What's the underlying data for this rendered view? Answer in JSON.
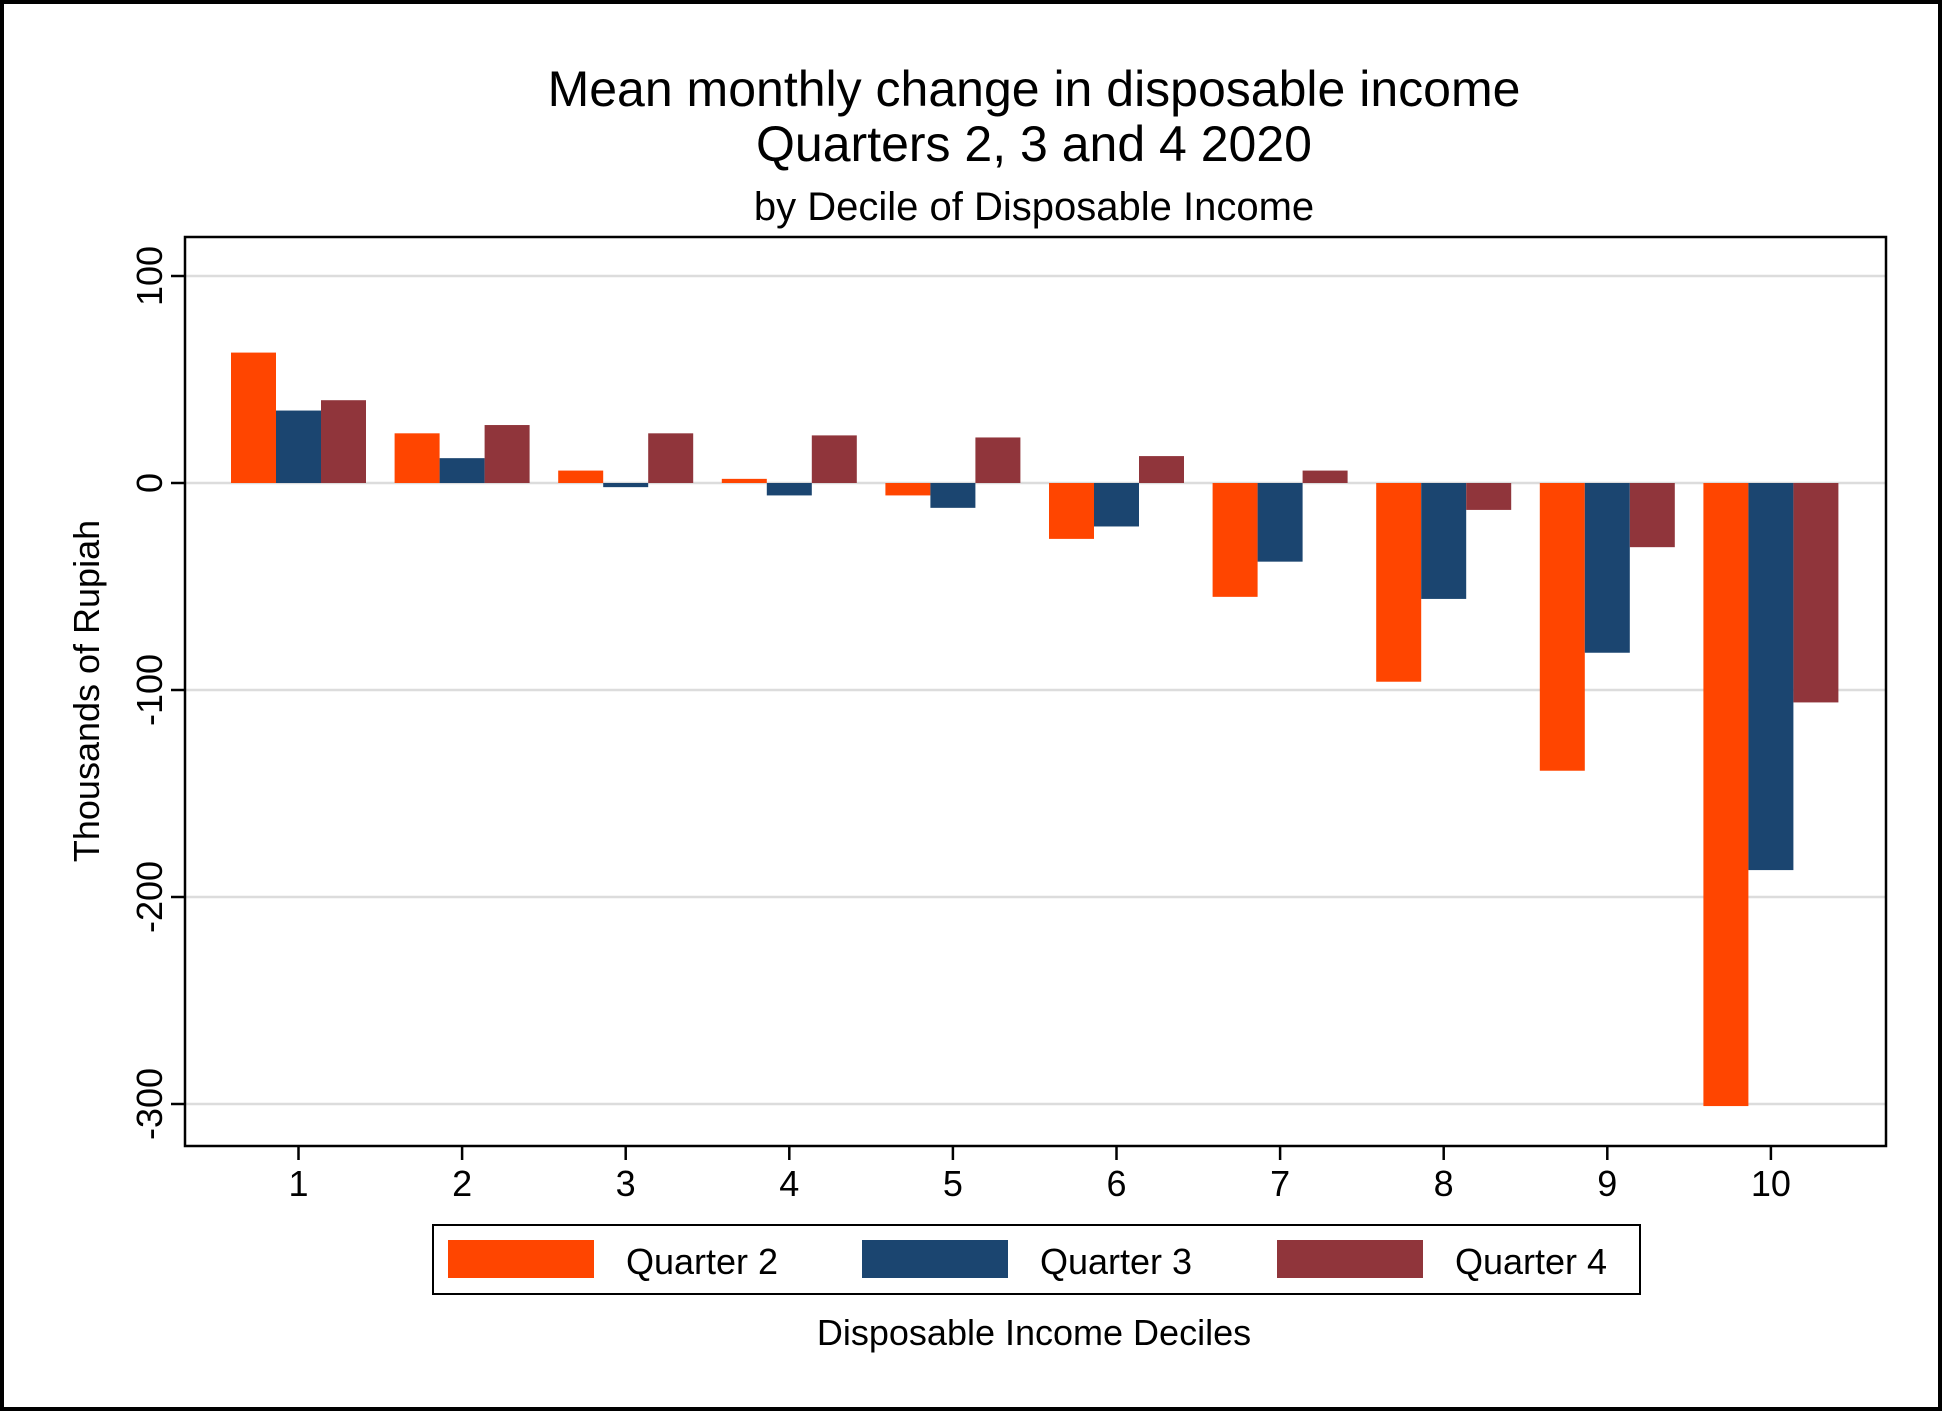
{
  "chart_data": {
    "type": "bar",
    "title_line1": "Mean monthly change in disposable income",
    "title_line2": "Quarters 2, 3 and 4 2020",
    "subtitle": "by Decile of Disposable Income",
    "xlabel": "Disposable Income Deciles",
    "ylabel": "Thousands of Rupiah",
    "ylim": [
      -320,
      120
    ],
    "yticks": [
      100,
      0,
      -100,
      -200,
      -300
    ],
    "ytick_labels": [
      "100",
      "0",
      "-100",
      "-200",
      "-300"
    ],
    "grid": true,
    "legend_position": "bottom",
    "categories": [
      "1",
      "2",
      "3",
      "4",
      "5",
      "6",
      "7",
      "8",
      "9",
      "10"
    ],
    "series": [
      {
        "name": "Quarter 2",
        "color": "#FF4500",
        "values": [
          63,
          24,
          6,
          2,
          -6,
          -27,
          -55,
          -96,
          -139,
          -301
        ]
      },
      {
        "name": "Quarter 3",
        "color": "#1B4570",
        "values": [
          35,
          12,
          -2,
          -6,
          -12,
          -21,
          -38,
          -56,
          -82,
          -187
        ]
      },
      {
        "name": "Quarter 4",
        "color": "#90353B",
        "values": [
          40,
          28,
          24,
          23,
          22,
          13,
          6,
          -13,
          -31,
          -106
        ]
      }
    ]
  }
}
